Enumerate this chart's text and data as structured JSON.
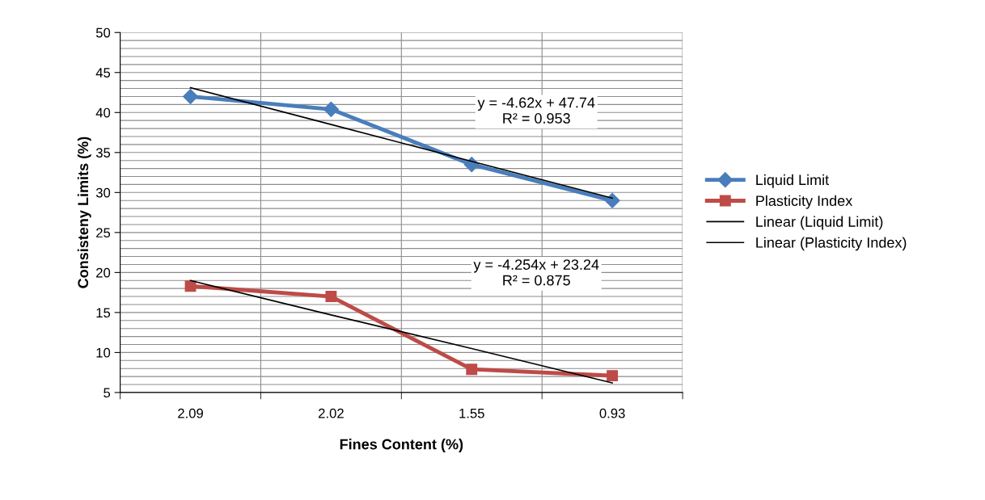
{
  "chart_data": {
    "type": "line",
    "xlabel": "Fines Content (%)",
    "ylabel": "Consisteny Limits (%)",
    "categories": [
      "2.09",
      "2.02",
      "1.55",
      "0.93"
    ],
    "series": [
      {
        "name": "Liquid Limit",
        "color": "#4a7ebb",
        "marker": "diamond",
        "values": [
          42,
          40.4,
          33.5,
          29
        ]
      },
      {
        "name": "Plasticity Index",
        "color": "#be4b48",
        "marker": "square",
        "values": [
          18.3,
          17,
          7.9,
          7.1
        ]
      },
      {
        "name": "Linear (Liquid Limit)",
        "color": "#000000",
        "marker": "none",
        "values": [
          43.1,
          38.5,
          33.9,
          29.3
        ]
      },
      {
        "name": "Linear (Plasticity Index)",
        "color": "#000000",
        "marker": "none",
        "values": [
          19,
          14.7,
          10.5,
          6.2
        ]
      }
    ],
    "ylim": [
      5,
      50
    ],
    "yticks": [
      5,
      10,
      15,
      20,
      25,
      30,
      35,
      40,
      45,
      50
    ],
    "grid": true,
    "legend": "right",
    "annotations": [
      "y = -4.62x + 47.74\nR² = 0.953",
      "y = -4.254x + 23.24\nR² = 0.875"
    ]
  }
}
